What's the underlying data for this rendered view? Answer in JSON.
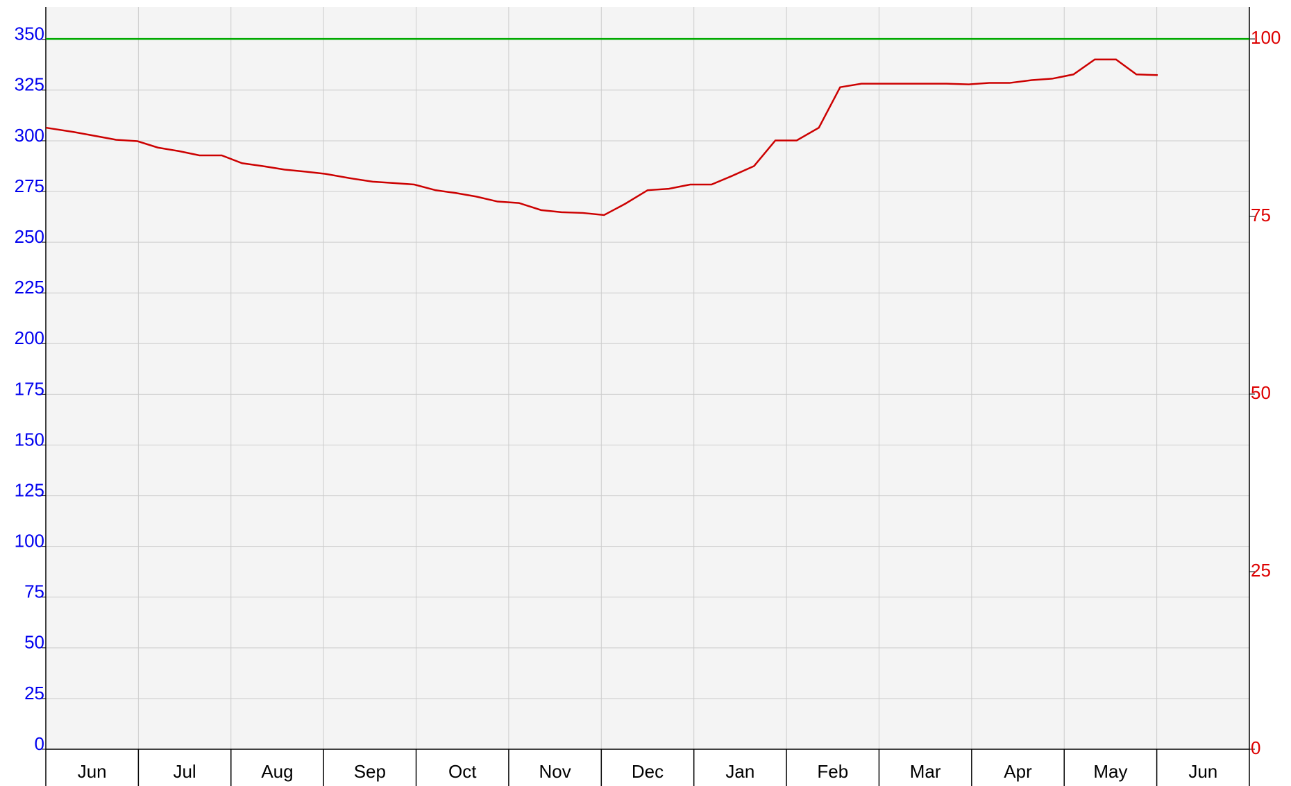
{
  "chart_data": {
    "type": "line",
    "categories": [
      "Jun",
      "Jul",
      "Aug",
      "Sep",
      "Oct",
      "Nov",
      "Dec",
      "Jan",
      "Feb",
      "Mar",
      "Apr",
      "May",
      "Jun"
    ],
    "xlim": [
      0,
      13
    ],
    "xticks": [
      0,
      1,
      2,
      3,
      4,
      5,
      6,
      7,
      8,
      9,
      10,
      11,
      12,
      13
    ],
    "ylim": [
      0,
      366
    ],
    "yticks": [
      0,
      25,
      50,
      75,
      100,
      125,
      150,
      175,
      200,
      225,
      250,
      275,
      300,
      325,
      350
    ],
    "ycolor": "#0000ee",
    "y2lim": [
      0,
      104.5
    ],
    "y2ticks": [
      0,
      25,
      50,
      75,
      100
    ],
    "y2color": "#dd0000",
    "grid": true,
    "reference_line": {
      "value": 100,
      "axis": "y2",
      "color": "#00aa00"
    },
    "series": [
      {
        "color": "#cc0000",
        "axis": "y2",
        "x": [
          0,
          0.3,
          0.76,
          0.99,
          1.21,
          1.44,
          1.66,
          1.9,
          2.12,
          2.34,
          2.58,
          2.81,
          3.02,
          3.28,
          3.53,
          3.76,
          3.98,
          4.21,
          4.43,
          4.65,
          4.88,
          5.11,
          5.35,
          5.57,
          5.8,
          6.03,
          6.26,
          6.5,
          6.73,
          6.96,
          7.19,
          7.41,
          7.65,
          7.88,
          8.11,
          8.35,
          8.58,
          8.81,
          9.04,
          9.27,
          9.5,
          9.73,
          9.97,
          10.19,
          10.41,
          10.65,
          10.87,
          11.1,
          11.33,
          11.56,
          11.78,
          12.01
        ],
        "values": [
          87.5,
          86.9,
          85.8,
          85.6,
          84.7,
          84.2,
          83.6,
          83.6,
          82.5,
          82.1,
          81.6,
          81.3,
          81.0,
          80.4,
          79.9,
          79.7,
          79.5,
          78.7,
          78.3,
          77.8,
          77.1,
          76.9,
          75.9,
          75.6,
          75.5,
          75.2,
          76.8,
          78.7,
          78.9,
          79.5,
          79.5,
          80.7,
          82.1,
          85.7,
          85.7,
          87.5,
          93.2,
          93.7,
          93.7,
          93.7,
          93.7,
          93.7,
          93.6,
          93.8,
          93.8,
          94.2,
          94.4,
          95.0,
          97.1,
          97.1,
          95.0,
          94.9
        ]
      }
    ]
  }
}
